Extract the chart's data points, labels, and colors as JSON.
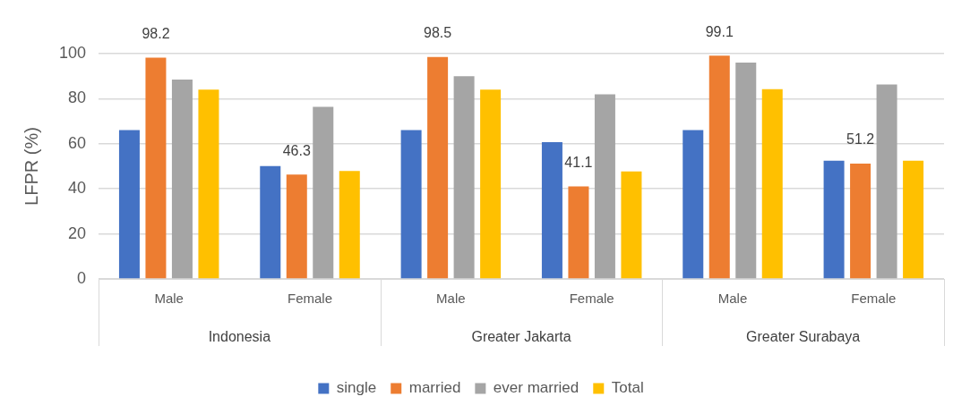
{
  "chart_data": {
    "type": "bar",
    "ylabel": "LFPR (%)",
    "categories": [
      "Male",
      "Female",
      "Male",
      "Female",
      "Male",
      "Female"
    ],
    "annotations": [
      "Indonesia",
      "Greater Jakarta",
      "Greater Surabaya"
    ],
    "series": [
      {
        "name": "single",
        "color": "#4472c4",
        "values": [
          66.1,
          50.1,
          66.1,
          60.7,
          66.1,
          52.5
        ]
      },
      {
        "name": "married",
        "color": "#ed7d31",
        "values": [
          98.2,
          46.3,
          98.5,
          41.1,
          99.1,
          51.2
        ],
        "value_labels": [
          "98.2",
          "46.3",
          "98.5",
          "41.1",
          "99.1",
          "51.2"
        ]
      },
      {
        "name": "ever married",
        "color": "#a5a5a5",
        "values": [
          88.5,
          76.4,
          90.0,
          81.9,
          96.0,
          86.3
        ]
      },
      {
        "name": "Total",
        "color": "#ffc000",
        "values": [
          84.0,
          47.9,
          84.0,
          47.7,
          84.2,
          52.5
        ]
      }
    ],
    "ylim": [
      0,
      100
    ],
    "yticks": [
      0,
      20,
      40,
      60,
      80,
      100
    ],
    "grid": "y",
    "legend": "bottom"
  }
}
